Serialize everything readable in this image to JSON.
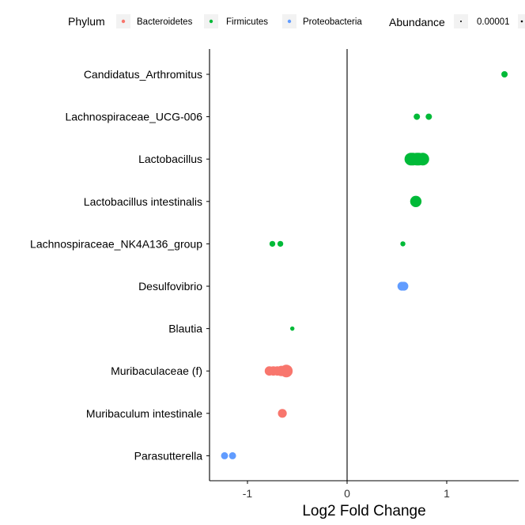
{
  "chart_data": {
    "type": "scatter",
    "xlabel": "Log2 Fold Change",
    "ylabel": "",
    "xlim": [
      -1.38,
      1.72
    ],
    "x_ticks": [
      {
        "value": -1,
        "label": "-1"
      },
      {
        "value": 0,
        "label": "0"
      },
      {
        "value": 1,
        "label": "1"
      }
    ],
    "zero_line": 0,
    "grid": false,
    "categories": [
      "Candidatus_Arthromitus",
      "Lachnospiraceae_UCG-006",
      "Lactobacillus",
      "Lactobacillus intestinalis",
      "Lachnospiraceae_NK4A136_group",
      "Desulfovibrio",
      "Blautia",
      "Muribaculaceae (f)",
      "Muribaculum intestinale",
      "Parasutterella"
    ],
    "legend": {
      "placement": "top",
      "color_title": "Phylum",
      "phyla": [
        {
          "name": "Bacteroidetes",
          "color": "#F8766D"
        },
        {
          "name": "Firmicutes",
          "color": "#00BA38"
        },
        {
          "name": "Proteobacteria",
          "color": "#619CFF"
        }
      ],
      "size_title": "Abundance",
      "size_labels": [
        "0.00001"
      ]
    },
    "points": [
      {
        "taxon": "Candidatus_Arthromitus",
        "x": 1.58,
        "phylum": "Firmicutes",
        "size": 2
      },
      {
        "taxon": "Lachnospiraceae_UCG-006",
        "x": 0.7,
        "phylum": "Firmicutes",
        "size": 2
      },
      {
        "taxon": "Lachnospiraceae_UCG-006",
        "x": 0.82,
        "phylum": "Firmicutes",
        "size": 2
      },
      {
        "taxon": "Lactobacillus",
        "x": 0.64,
        "phylum": "Firmicutes",
        "size": 4.5
      },
      {
        "taxon": "Lactobacillus",
        "x": 0.66,
        "phylum": "Firmicutes",
        "size": 4.5
      },
      {
        "taxon": "Lactobacillus",
        "x": 0.7,
        "phylum": "Firmicutes",
        "size": 4.5
      },
      {
        "taxon": "Lactobacillus",
        "x": 0.72,
        "phylum": "Firmicutes",
        "size": 4.5
      },
      {
        "taxon": "Lactobacillus",
        "x": 0.76,
        "phylum": "Firmicutes",
        "size": 4.5
      },
      {
        "taxon": "Lactobacillus intestinalis",
        "x": 0.69,
        "phylum": "Firmicutes",
        "size": 4
      },
      {
        "taxon": "Lachnospiraceae_NK4A136_group",
        "x": -0.75,
        "phylum": "Firmicutes",
        "size": 1.8
      },
      {
        "taxon": "Lachnospiraceae_NK4A136_group",
        "x": -0.67,
        "phylum": "Firmicutes",
        "size": 1.8
      },
      {
        "taxon": "Lachnospiraceae_NK4A136_group",
        "x": 0.56,
        "phylum": "Firmicutes",
        "size": 1.5
      },
      {
        "taxon": "Desulfovibrio",
        "x": 0.55,
        "phylum": "Proteobacteria",
        "size": 3
      },
      {
        "taxon": "Desulfovibrio",
        "x": 0.57,
        "phylum": "Proteobacteria",
        "size": 3
      },
      {
        "taxon": "Blautia",
        "x": -0.55,
        "phylum": "Firmicutes",
        "size": 1.2
      },
      {
        "taxon": "Muribaculaceae (f)",
        "x": -0.78,
        "phylum": "Bacteroidetes",
        "size": 3.2
      },
      {
        "taxon": "Muribaculaceae (f)",
        "x": -0.74,
        "phylum": "Bacteroidetes",
        "size": 3.2
      },
      {
        "taxon": "Muribaculaceae (f)",
        "x": -0.7,
        "phylum": "Bacteroidetes",
        "size": 3.2
      },
      {
        "taxon": "Muribaculaceae (f)",
        "x": -0.66,
        "phylum": "Bacteroidetes",
        "size": 3.6
      },
      {
        "taxon": "Muribaculaceae (f)",
        "x": -0.61,
        "phylum": "Bacteroidetes",
        "size": 4.5
      },
      {
        "taxon": "Muribaculum intestinale",
        "x": -0.65,
        "phylum": "Bacteroidetes",
        "size": 3
      },
      {
        "taxon": "Parasutterella",
        "x": -1.23,
        "phylum": "Proteobacteria",
        "size": 2.3
      },
      {
        "taxon": "Parasutterella",
        "x": -1.15,
        "phylum": "Proteobacteria",
        "size": 2.3
      }
    ]
  }
}
